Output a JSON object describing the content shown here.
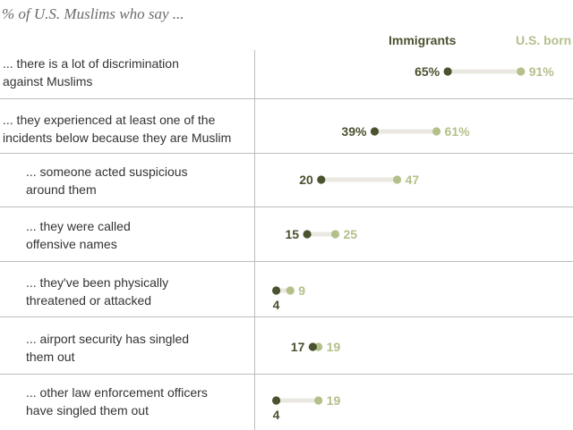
{
  "chart_data": {
    "type": "dot-range",
    "title": "% of U.S. Muslims who say ...",
    "legend": {
      "immigrants": "Immigrants",
      "us_born": "U.S. born"
    },
    "colors": {
      "immigrants": "#4a5230",
      "us_born": "#b3c08a",
      "connector": "#ebe8e2",
      "grid": "#bdbdbd"
    },
    "xlim": [
      0,
      100
    ],
    "rows": [
      {
        "label_line1": "... there is a lot of discrimination",
        "label_line2": "against Muslims",
        "immigrants": 65,
        "us_born": 91,
        "imm_label": "65%",
        "usb_label": "91%",
        "sub": false
      },
      {
        "label_line1": "... they experienced at least one of the",
        "label_line2": "incidents below because they are Muslim",
        "immigrants": 39,
        "us_born": 61,
        "imm_label": "39%",
        "usb_label": "61%",
        "sub": false
      },
      {
        "label_line1": "... someone acted suspicious",
        "label_line2": "around them",
        "immigrants": 20,
        "us_born": 47,
        "imm_label": "20",
        "usb_label": "47",
        "sub": true
      },
      {
        "label_line1": "... they were called",
        "label_line2": "offensive names",
        "immigrants": 15,
        "us_born": 25,
        "imm_label": "15",
        "usb_label": "25",
        "sub": true
      },
      {
        "label_line1": "... they've been physically",
        "label_line2": "threatened or attacked",
        "immigrants": 4,
        "us_born": 9,
        "imm_label": "4",
        "usb_label": "9",
        "sub": true
      },
      {
        "label_line1": "... airport security has singled",
        "label_line2": "them out",
        "immigrants": 17,
        "us_born": 19,
        "imm_label": "17",
        "usb_label": "19",
        "sub": true
      },
      {
        "label_line1": "... other law enforcement officers",
        "label_line2": "have singled them out",
        "immigrants": 4,
        "us_born": 19,
        "imm_label": "4",
        "usb_label": "19",
        "sub": true
      }
    ]
  }
}
